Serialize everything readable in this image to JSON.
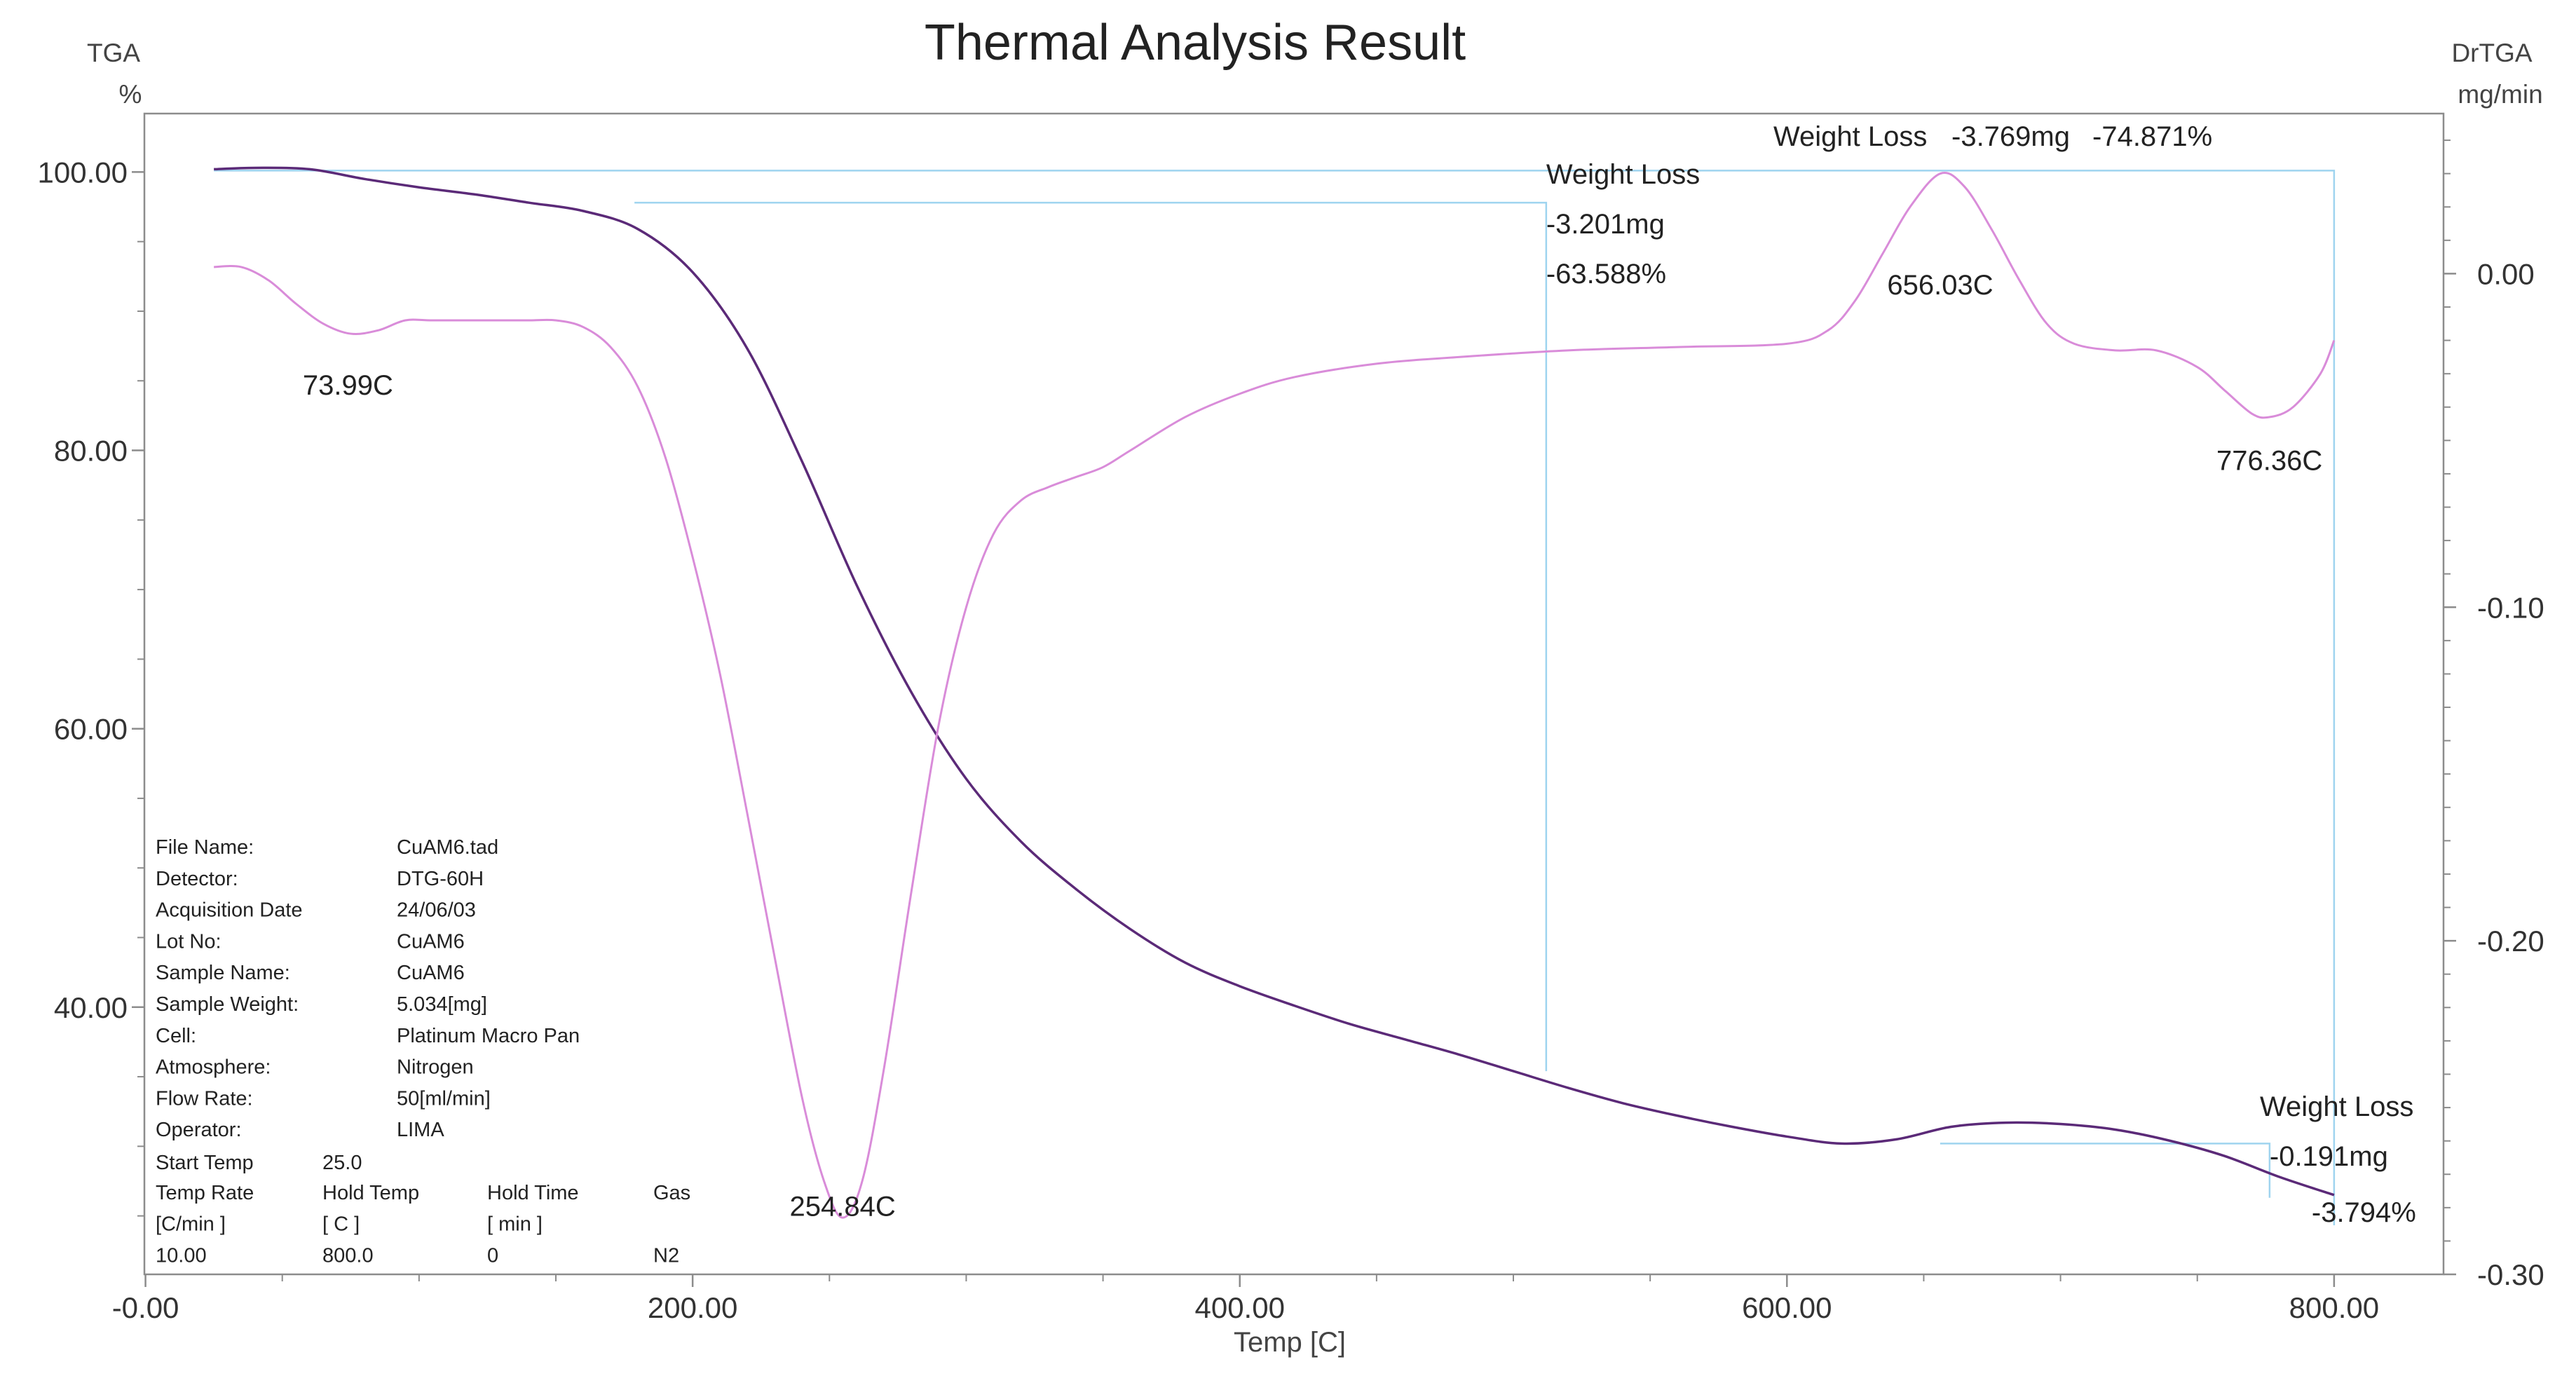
{
  "chart_data": {
    "type": "line",
    "title": "Thermal Analysis Result",
    "x_axis": {
      "label": "Temp  [C]",
      "range": [
        -0.4,
        840
      ],
      "ticks": [
        0,
        200,
        400,
        600,
        800
      ],
      "tick_labels": [
        "-0.00",
        "200.00",
        "400.00",
        "600.00",
        "800.00"
      ]
    },
    "y_axis_left": {
      "name": "TGA",
      "unit": "%",
      "range": [
        20.8,
        104.2
      ],
      "ticks": [
        40,
        60,
        80,
        100
      ],
      "tick_labels": [
        "40.00",
        "60.00",
        "80.00",
        "100.00"
      ]
    },
    "y_axis_right": {
      "name": "DrTGA",
      "unit": "mg/min",
      "range": [
        -0.3,
        0.048
      ],
      "ticks": [
        0,
        -0.1,
        -0.2,
        -0.3
      ],
      "tick_labels": [
        "0.00",
        "-0.10",
        "-0.20",
        "-0.30"
      ]
    },
    "series": [
      {
        "id": "tga",
        "axis": "left",
        "color": "#5b2a78",
        "points": [
          [
            25,
            100.2
          ],
          [
            40,
            100.3
          ],
          [
            60,
            100.2
          ],
          [
            80,
            99.5
          ],
          [
            100,
            98.9
          ],
          [
            120,
            98.4
          ],
          [
            140,
            97.8
          ],
          [
            160,
            97.2
          ],
          [
            180,
            95.9
          ],
          [
            200,
            92.8
          ],
          [
            220,
            87.3
          ],
          [
            240,
            79.2
          ],
          [
            260,
            70.3
          ],
          [
            280,
            62.6
          ],
          [
            300,
            56.4
          ],
          [
            320,
            51.9
          ],
          [
            340,
            48.5
          ],
          [
            360,
            45.6
          ],
          [
            380,
            43.2
          ],
          [
            400,
            41.5
          ],
          [
            420,
            40.1
          ],
          [
            440,
            38.8
          ],
          [
            460,
            37.7
          ],
          [
            480,
            36.6
          ],
          [
            500,
            35.4
          ],
          [
            520,
            34.2
          ],
          [
            540,
            33.1
          ],
          [
            560,
            32.2
          ],
          [
            580,
            31.4
          ],
          [
            600,
            30.7
          ],
          [
            620,
            30.2
          ],
          [
            640,
            30.5
          ],
          [
            660,
            31.4
          ],
          [
            680,
            31.7
          ],
          [
            700,
            31.6
          ],
          [
            720,
            31.2
          ],
          [
            740,
            30.4
          ],
          [
            760,
            29.3
          ],
          [
            780,
            27.8
          ],
          [
            800,
            26.5
          ]
        ]
      },
      {
        "id": "drtga",
        "axis": "right",
        "color": "#d98cd9",
        "points": [
          [
            25,
            0.002
          ],
          [
            35,
            0.002
          ],
          [
            45,
            -0.002
          ],
          [
            55,
            -0.009
          ],
          [
            65,
            -0.015
          ],
          [
            75,
            -0.018
          ],
          [
            85,
            -0.017
          ],
          [
            95,
            -0.014
          ],
          [
            105,
            -0.014
          ],
          [
            125,
            -0.014
          ],
          [
            140,
            -0.014
          ],
          [
            150,
            -0.014
          ],
          [
            160,
            -0.016
          ],
          [
            170,
            -0.022
          ],
          [
            180,
            -0.034
          ],
          [
            190,
            -0.055
          ],
          [
            200,
            -0.085
          ],
          [
            210,
            -0.12
          ],
          [
            220,
            -0.162
          ],
          [
            230,
            -0.205
          ],
          [
            240,
            -0.247
          ],
          [
            248,
            -0.272
          ],
          [
            254.84,
            -0.283
          ],
          [
            262,
            -0.272
          ],
          [
            270,
            -0.238
          ],
          [
            280,
            -0.185
          ],
          [
            290,
            -0.135
          ],
          [
            300,
            -0.1
          ],
          [
            310,
            -0.078
          ],
          [
            320,
            -0.068
          ],
          [
            330,
            -0.064
          ],
          [
            340,
            -0.061
          ],
          [
            350,
            -0.058
          ],
          [
            360,
            -0.053
          ],
          [
            380,
            -0.043
          ],
          [
            400,
            -0.036
          ],
          [
            420,
            -0.031
          ],
          [
            450,
            -0.027
          ],
          [
            480,
            -0.025
          ],
          [
            520,
            -0.023
          ],
          [
            560,
            -0.022
          ],
          [
            600,
            -0.021
          ],
          [
            615,
            -0.017
          ],
          [
            625,
            -0.008
          ],
          [
            635,
            0.006
          ],
          [
            645,
            0.02
          ],
          [
            656.03,
            0.03
          ],
          [
            665,
            0.026
          ],
          [
            675,
            0.013
          ],
          [
            685,
            -0.002
          ],
          [
            695,
            -0.015
          ],
          [
            705,
            -0.021
          ],
          [
            720,
            -0.023
          ],
          [
            735,
            -0.023
          ],
          [
            750,
            -0.028
          ],
          [
            760,
            -0.035
          ],
          [
            770,
            -0.042
          ],
          [
            776.36,
            -0.043
          ],
          [
            785,
            -0.04
          ],
          [
            795,
            -0.03
          ],
          [
            800,
            -0.02
          ]
        ]
      }
    ],
    "annotations": [
      {
        "text": "73.99C",
        "x": 73.99,
        "y": 84.0
      },
      {
        "text": "254.84C",
        "x": 254.84,
        "y": 25.0
      },
      {
        "text": "656.03C",
        "x": 656.03,
        "y": 91.2
      },
      {
        "text": "776.36C",
        "x": 776.36,
        "y": 78.6
      }
    ],
    "weight_loss_steps": [
      {
        "label": "Weight Loss",
        "mass": "-3.201mg",
        "percent": "-63.588%",
        "x_start": 25,
        "x_end": 512,
        "y_level": 97.8
      },
      {
        "label": "Weight Loss",
        "mass": "-3.769mg",
        "percent": "-74.871%",
        "x_start": 25,
        "x_end": 800,
        "y_level": 100.1
      },
      {
        "label": "Weight Loss",
        "mass": "-0.191mg",
        "percent": "-3.794%",
        "x_start": 656,
        "x_end": 800,
        "y_level": 30.2
      }
    ],
    "sample_info": [
      {
        "key": "File Name:",
        "value": "CuAM6.tad"
      },
      {
        "key": "Detector:",
        "value": "DTG-60H"
      },
      {
        "key": "Acquisition Date",
        "value": "24/06/03"
      },
      {
        "key": "Lot No:",
        "value": "CuAM6"
      },
      {
        "key": "Sample Name:",
        "value": "CuAM6"
      },
      {
        "key": "Sample Weight:",
        "value": "5.034[mg]"
      },
      {
        "key": "Cell:",
        "value": "Platinum Macro Pan"
      },
      {
        "key": "Atmosphere:",
        "value": "Nitrogen"
      },
      {
        "key": "Flow Rate:",
        "value": "50[ml/min]"
      },
      {
        "key": "Operator:",
        "value": "LIMA"
      }
    ],
    "program": {
      "start_label": "Start Temp",
      "start_value": "25.0",
      "headers": [
        "Temp Rate",
        "Hold Temp",
        "Hold Time",
        "Gas"
      ],
      "units": [
        "[C/min ]",
        "[  C  ]",
        "[  min  ]",
        ""
      ],
      "values": [
        "10.00",
        "800.0",
        "0",
        "N2"
      ]
    },
    "colors": {
      "tga": "#5b2a78",
      "drtga": "#d98cd9",
      "step_lines": "#9fd4ef",
      "frame": "#8c8c8c"
    },
    "grid": false,
    "legend": "none"
  }
}
